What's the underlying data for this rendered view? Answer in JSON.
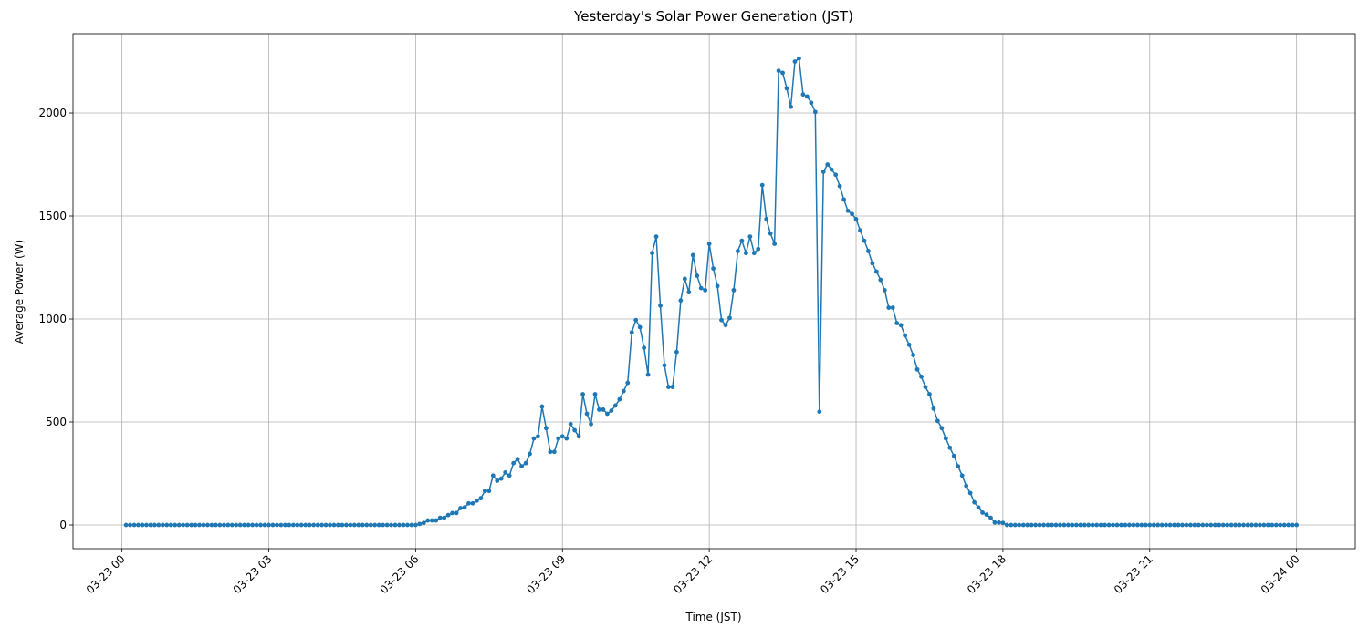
{
  "chart_data": {
    "type": "line",
    "title": "Yesterday's Solar Power Generation (JST)",
    "x_label": "Time (JST)",
    "y_label": "Average Power (W)",
    "grid": true,
    "xlim": [
      -60,
      1512
    ],
    "ylim": [
      -115,
      2385
    ],
    "xticks": [
      {
        "value": 0,
        "label": "03-23 00"
      },
      {
        "value": 180,
        "label": "03-23 03"
      },
      {
        "value": 360,
        "label": "03-23 06"
      },
      {
        "value": 540,
        "label": "03-23 09"
      },
      {
        "value": 720,
        "label": "03-23 12"
      },
      {
        "value": 900,
        "label": "03-23 15"
      },
      {
        "value": 1080,
        "label": "03-23 18"
      },
      {
        "value": 1260,
        "label": "03-23 21"
      },
      {
        "value": 1440,
        "label": "03-24 00"
      }
    ],
    "yticks": [
      0,
      500,
      1000,
      1500,
      2000
    ],
    "x": [
      5,
      10,
      15,
      20,
      25,
      30,
      35,
      40,
      45,
      50,
      55,
      60,
      65,
      70,
      75,
      80,
      85,
      90,
      95,
      100,
      105,
      110,
      115,
      120,
      125,
      130,
      135,
      140,
      145,
      150,
      155,
      160,
      165,
      170,
      175,
      180,
      185,
      190,
      195,
      200,
      205,
      210,
      215,
      220,
      225,
      230,
      235,
      240,
      245,
      250,
      255,
      260,
      265,
      270,
      275,
      280,
      285,
      290,
      295,
      300,
      305,
      310,
      315,
      320,
      325,
      330,
      335,
      340,
      345,
      350,
      355,
      360,
      365,
      370,
      375,
      380,
      385,
      390,
      395,
      400,
      405,
      410,
      415,
      420,
      425,
      430,
      435,
      440,
      445,
      450,
      455,
      460,
      465,
      470,
      475,
      480,
      485,
      490,
      495,
      500,
      505,
      510,
      515,
      520,
      525,
      530,
      535,
      540,
      545,
      550,
      555,
      560,
      565,
      570,
      575,
      580,
      585,
      590,
      595,
      600,
      605,
      610,
      615,
      620,
      625,
      630,
      635,
      640,
      645,
      650,
      655,
      660,
      665,
      670,
      675,
      680,
      685,
      690,
      695,
      700,
      705,
      710,
      715,
      720,
      725,
      730,
      735,
      740,
      745,
      750,
      755,
      760,
      765,
      770,
      775,
      780,
      785,
      790,
      795,
      800,
      805,
      810,
      815,
      820,
      825,
      830,
      835,
      840,
      845,
      850,
      855,
      860,
      865,
      870,
      875,
      880,
      885,
      890,
      895,
      900,
      905,
      910,
      915,
      920,
      925,
      930,
      935,
      940,
      945,
      950,
      955,
      960,
      965,
      970,
      975,
      980,
      985,
      990,
      995,
      1000,
      1005,
      1010,
      1015,
      1020,
      1025,
      1030,
      1035,
      1040,
      1045,
      1050,
      1055,
      1060,
      1065,
      1070,
      1075,
      1080,
      1085,
      1090,
      1095,
      1100,
      1105,
      1110,
      1115,
      1120,
      1125,
      1130,
      1135,
      1140,
      1145,
      1150,
      1155,
      1160,
      1165,
      1170,
      1175,
      1180,
      1185,
      1190,
      1195,
      1200,
      1205,
      1210,
      1215,
      1220,
      1225,
      1230,
      1235,
      1240,
      1245,
      1250,
      1255,
      1260,
      1265,
      1270,
      1275,
      1280,
      1285,
      1290,
      1295,
      1300,
      1305,
      1310,
      1315,
      1320,
      1325,
      1330,
      1335,
      1340,
      1345,
      1350,
      1355,
      1360,
      1365,
      1370,
      1375,
      1380,
      1385,
      1390,
      1395,
      1400,
      1405,
      1410,
      1415,
      1420,
      1425,
      1430,
      1435,
      1440
    ],
    "series": [
      {
        "color": "#1f77b4",
        "values": [
          0,
          0,
          0,
          0,
          0,
          0,
          0,
          0,
          0,
          0,
          0,
          0,
          0,
          0,
          0,
          0,
          0,
          0,
          0,
          0,
          0,
          0,
          0,
          0,
          0,
          0,
          0,
          0,
          0,
          0,
          0,
          0,
          0,
          0,
          0,
          0,
          0,
          0,
          0,
          0,
          0,
          0,
          0,
          0,
          0,
          0,
          0,
          0,
          0,
          0,
          0,
          0,
          0,
          0,
          0,
          0,
          0,
          0,
          0,
          0,
          0,
          0,
          0,
          0,
          0,
          0,
          0,
          0,
          0,
          0,
          0,
          0,
          5,
          10,
          22,
          22,
          22,
          35,
          35,
          48,
          58,
          58,
          82,
          85,
          105,
          105,
          118,
          130,
          165,
          165,
          240,
          215,
          225,
          255,
          240,
          300,
          320,
          285,
          300,
          345,
          420,
          430,
          575,
          470,
          355,
          355,
          420,
          430,
          420,
          490,
          460,
          430,
          635,
          540,
          490,
          635,
          560,
          560,
          540,
          555,
          580,
          610,
          650,
          690,
          935,
          995,
          960,
          860,
          730,
          1320,
          1400,
          1065,
          775,
          670,
          670,
          840,
          1090,
          1195,
          1130,
          1310,
          1210,
          1150,
          1140,
          1365,
          1245,
          1160,
          995,
          970,
          1005,
          1140,
          1330,
          1380,
          1320,
          1400,
          1320,
          1340,
          1650,
          1485,
          1415,
          1365,
          2205,
          2195,
          2120,
          2030,
          2250,
          2265,
          2090,
          2080,
          2050,
          2005,
          550,
          1715,
          1750,
          1725,
          1700,
          1645,
          1580,
          1525,
          1510,
          1485,
          1430,
          1380,
          1330,
          1270,
          1230,
          1190,
          1140,
          1055,
          1055,
          980,
          970,
          920,
          875,
          825,
          755,
          720,
          670,
          635,
          565,
          505,
          470,
          420,
          375,
          335,
          285,
          240,
          190,
          155,
          110,
          85,
          60,
          50,
          35,
          12,
          12,
          10,
          0,
          0,
          0,
          0,
          0,
          0,
          0,
          0,
          0,
          0,
          0,
          0,
          0,
          0,
          0,
          0,
          0,
          0,
          0,
          0,
          0,
          0,
          0,
          0,
          0,
          0,
          0,
          0,
          0,
          0,
          0,
          0,
          0,
          0,
          0,
          0,
          0,
          0,
          0,
          0,
          0,
          0,
          0,
          0,
          0,
          0,
          0,
          0,
          0,
          0,
          0,
          0,
          0,
          0,
          0,
          0,
          0,
          0,
          0,
          0,
          0,
          0,
          0,
          0,
          0,
          0,
          0,
          0,
          0,
          0,
          0,
          0
        ]
      }
    ]
  }
}
